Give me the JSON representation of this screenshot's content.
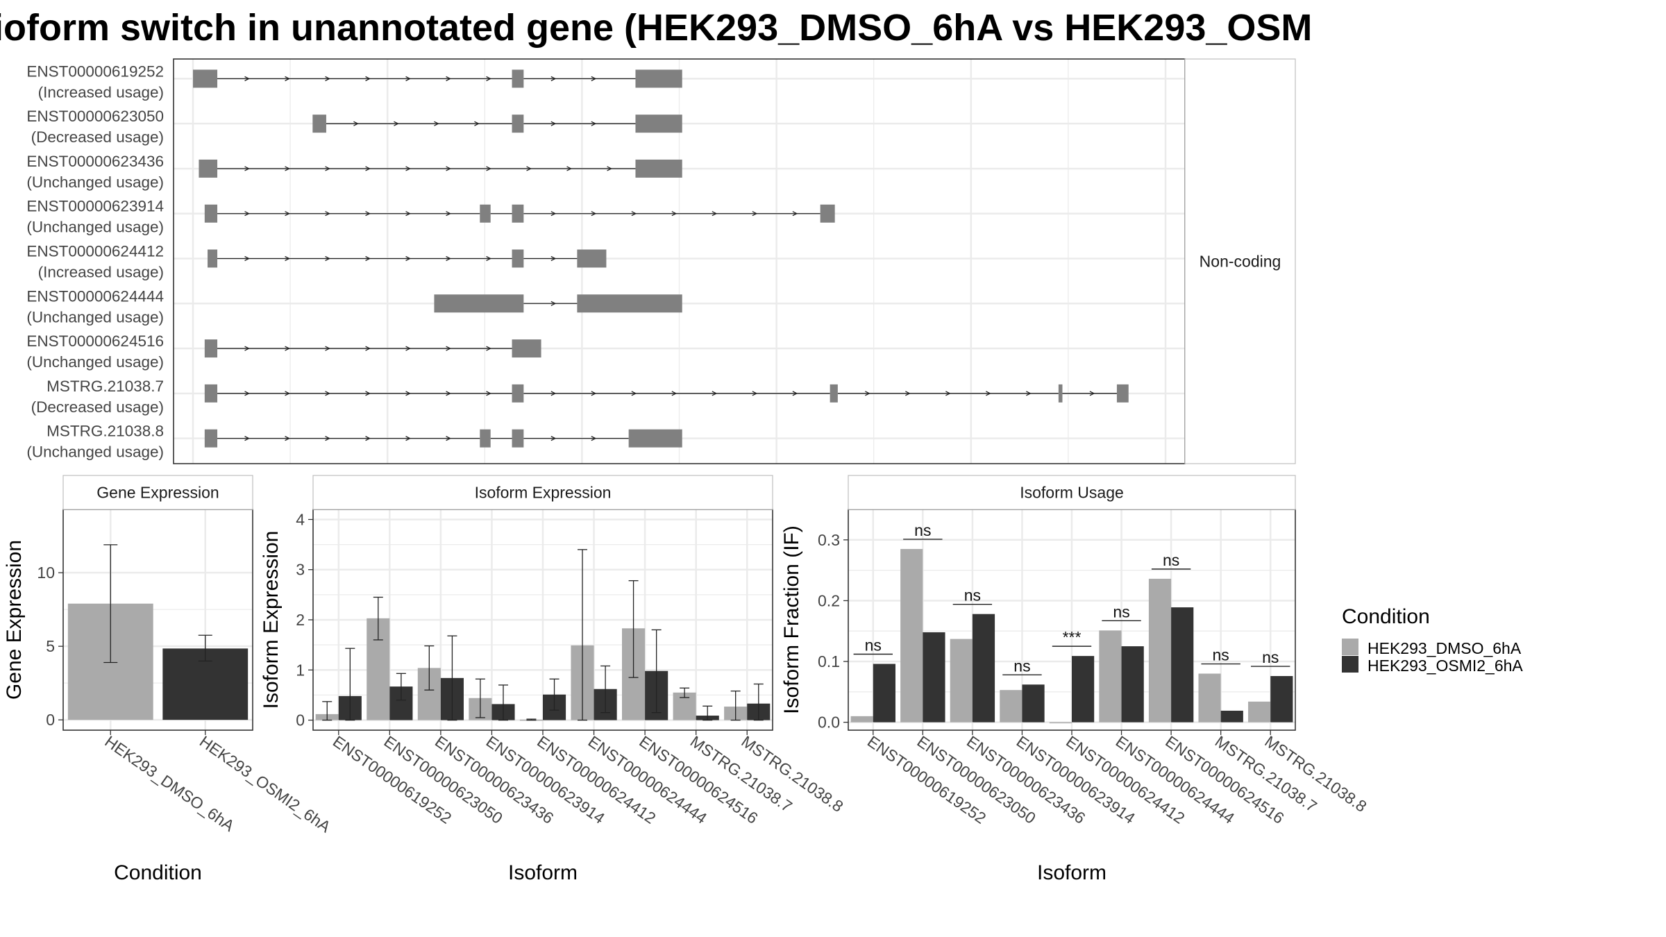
{
  "title": "ioform switch in unannotated gene (HEK293_DMSO_6hA vs HEK293_OSM",
  "colors": {
    "dmso": "#aaaaaa",
    "osmi": "#333333",
    "structure": "#808080",
    "grid": "#ebebeb",
    "frame": "#333333",
    "strip_fill": "#ffffff"
  },
  "chart_data": [
    {
      "type": "gene_structure",
      "strip_label": "Non-coding",
      "tracks": [
        {
          "label": "ENST00000619252",
          "usage": "(Increased usage)",
          "exons": [
            [
              0,
              0.25
            ],
            [
              3.28,
              3.4
            ],
            [
              4.55,
              5.03
            ]
          ]
        },
        {
          "label": "ENST00000623050",
          "usage": "(Decreased usage)",
          "exons": [
            [
              1.23,
              1.37
            ],
            [
              3.28,
              3.4
            ],
            [
              4.55,
              5.03
            ]
          ]
        },
        {
          "label": "ENST00000623436",
          "usage": "(Unchanged usage)",
          "exons": [
            [
              0.06,
              0.25
            ],
            [
              4.55,
              5.03
            ]
          ]
        },
        {
          "label": "ENST00000623914",
          "usage": "(Unchanged usage)",
          "exons": [
            [
              0.12,
              0.25
            ],
            [
              2.95,
              3.06
            ],
            [
              3.28,
              3.4
            ],
            [
              6.45,
              6.6
            ]
          ]
        },
        {
          "label": "ENST00000624412",
          "usage": "(Increased usage)",
          "exons": [
            [
              0.15,
              0.25
            ],
            [
              3.28,
              3.4
            ],
            [
              3.95,
              4.25
            ]
          ]
        },
        {
          "label": "ENST00000624444",
          "usage": "(Unchanged usage)",
          "exons": [
            [
              2.48,
              3.4
            ],
            [
              3.95,
              5.03
            ]
          ]
        },
        {
          "label": "ENST00000624516",
          "usage": "(Unchanged usage)",
          "exons": [
            [
              0.12,
              0.25
            ],
            [
              3.28,
              3.58
            ]
          ]
        },
        {
          "label": "MSTRG.21038.7",
          "usage": "(Decreased usage)",
          "exons": [
            [
              0.12,
              0.25
            ],
            [
              3.28,
              3.4
            ],
            [
              6.55,
              6.63
            ],
            [
              8.9,
              8.94
            ],
            [
              9.5,
              9.62
            ]
          ]
        },
        {
          "label": "MSTRG.21038.8",
          "usage": "(Unchanged usage)",
          "exons": [
            [
              0.12,
              0.25
            ],
            [
              2.95,
              3.06
            ],
            [
              3.28,
              3.4
            ],
            [
              4.48,
              5.03
            ]
          ]
        }
      ]
    },
    {
      "type": "bar",
      "title": "Gene Expression",
      "xlabel": "Condition",
      "ylabel": "Gene Expression",
      "categories": [
        "HEK293_DMSO_6hA",
        "HEK293_OSMI2_6hA"
      ],
      "values": [
        7.9,
        4.85
      ],
      "err_low": [
        3.9,
        4.0
      ],
      "err_high": [
        11.9,
        5.75
      ],
      "ylim": [
        -0.7,
        14.3
      ],
      "yticks": [
        0,
        5,
        10
      ]
    },
    {
      "type": "bar",
      "title": "Isoform Expression",
      "xlabel": "Isoform",
      "ylabel": "Isoform Expression",
      "categories": [
        "ENST00000619252",
        "ENST00000623050",
        "ENST00000623436",
        "ENST00000623914",
        "ENST00000624412",
        "ENST00000624444",
        "ENST00000624516",
        "MSTRG.21038.7",
        "MSTRG.21038.8"
      ],
      "series": [
        {
          "name": "HEK293_DMSO_6hA",
          "values": [
            0.12,
            2.03,
            1.04,
            0.44,
            0.01,
            1.49,
            1.83,
            0.55,
            0.27
          ],
          "err_low": [
            0.0,
            1.6,
            0.6,
            0.05,
            0.0,
            0.0,
            0.85,
            0.45,
            0.0
          ],
          "err_high": [
            0.37,
            2.45,
            1.48,
            0.82,
            0.02,
            3.4,
            2.78,
            0.64,
            0.58
          ]
        },
        {
          "name": "HEK293_OSMI2_6hA",
          "values": [
            0.48,
            0.67,
            0.84,
            0.32,
            0.51,
            0.62,
            0.98,
            0.09,
            0.33
          ],
          "err_low": [
            0.0,
            0.4,
            0.0,
            0.0,
            0.2,
            0.15,
            0.15,
            0.0,
            0.0
          ],
          "err_high": [
            1.43,
            0.93,
            1.68,
            0.7,
            0.82,
            1.08,
            1.8,
            0.28,
            0.72
          ]
        }
      ],
      "ylim": [
        -0.2,
        4.2
      ],
      "yticks": [
        0,
        1,
        2,
        3,
        4
      ]
    },
    {
      "type": "bar",
      "title": "Isoform Usage",
      "xlabel": "Isoform",
      "ylabel": "Isoform Fraction (IF)",
      "categories": [
        "ENST00000619252",
        "ENST00000623050",
        "ENST00000623436",
        "ENST00000623914",
        "ENST00000624412",
        "ENST00000624444",
        "ENST00000624516",
        "MSTRG.21038.7",
        "MSTRG.21038.8"
      ],
      "series": [
        {
          "name": "HEK293_DMSO_6hA",
          "values": [
            0.01,
            0.285,
            0.137,
            0.053,
            0.0,
            0.151,
            0.236,
            0.08,
            0.034
          ]
        },
        {
          "name": "HEK293_OSMI2_6hA",
          "values": [
            0.096,
            0.148,
            0.178,
            0.062,
            0.109,
            0.125,
            0.189,
            0.019,
            0.076
          ]
        }
      ],
      "significance": [
        "ns",
        "ns",
        "ns",
        "ns",
        "***",
        "ns",
        "ns",
        "ns",
        "ns"
      ],
      "ylim": [
        -0.013,
        0.35
      ],
      "yticks": [
        0.0,
        0.1,
        0.2,
        0.3
      ],
      "ytick_labels": [
        "0.0",
        "0.1",
        "0.2",
        "0.3"
      ]
    }
  ],
  "legend": {
    "title": "Condition",
    "items": [
      "HEK293_DMSO_6hA",
      "HEK293_OSMI2_6hA"
    ]
  }
}
